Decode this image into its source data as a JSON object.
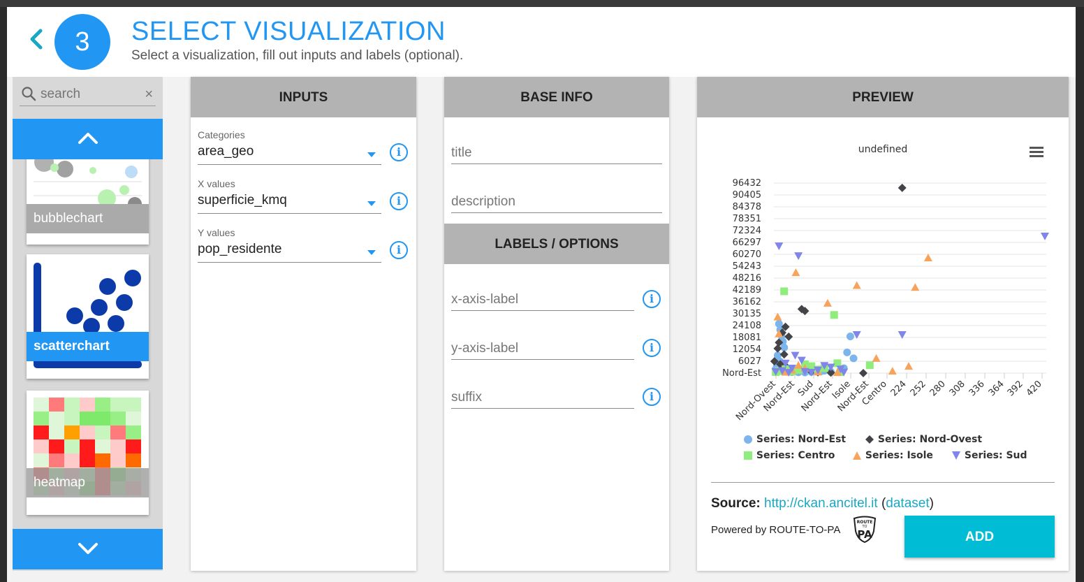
{
  "header": {
    "back_label": "‹",
    "step_number": "3",
    "title": "SELECT VISUALIZATION",
    "subtitle": "Select a visualization, fill out inputs and labels (optional)."
  },
  "sidebar": {
    "search_placeholder": "search",
    "clear_label": "×",
    "cards": [
      {
        "label": "bubblechart",
        "selected": false
      },
      {
        "label": "scatterchart",
        "selected": true
      },
      {
        "label": "heatmap",
        "selected": false
      }
    ]
  },
  "inputs": {
    "heading": "INPUTS",
    "fields": [
      {
        "label": "Categories",
        "value": "area_geo"
      },
      {
        "label": "X values",
        "value": "superficie_kmq"
      },
      {
        "label": "Y values",
        "value": "pop_residente"
      }
    ]
  },
  "base_info": {
    "heading": "BASE INFO",
    "title_placeholder": "title",
    "description_placeholder": "description",
    "labels_heading": "LABELS / OPTIONS",
    "xaxis_placeholder": "x-axis-label",
    "yaxis_placeholder": "y-axis-label",
    "suffix_placeholder": "suffix"
  },
  "preview": {
    "heading": "PREVIEW",
    "source_label": "Source:",
    "source_url": "http://ckan.ancitel.it",
    "dataset_label": "dataset",
    "powered_by": "Powered by ROUTE-TO-PA",
    "logo_text_top": "ROUTE",
    "logo_text_mid": "TO",
    "logo_text_pa": "PA",
    "add_label": "ADD"
  },
  "colors": {
    "accent": "#2196f3",
    "add_button": "#00bcd4",
    "panel_header": "#b3b3b3",
    "series_nord_est": "#7cb5ec",
    "series_nord_ovest": "#434348",
    "series_centro": "#90ed7d",
    "series_isole": "#f7a35c",
    "series_sud": "#8085e9"
  },
  "chart_data": {
    "type": "scatter",
    "title": "undefined",
    "y_tick_labels": [
      "Nord-Est",
      "6027",
      "12054",
      "18081",
      "24108",
      "30135",
      "36162",
      "42189",
      "48216",
      "54243",
      "60270",
      "66297",
      "72324",
      "78351",
      "84378",
      "90405",
      "96432"
    ],
    "x_tick_labels": [
      "Nord-Ovest",
      "Nord-Est",
      "Sud",
      "Nord-Est",
      "Isole",
      "Nord-Est",
      "Centro",
      "224",
      "252",
      "280",
      "308",
      "336",
      "364",
      "392",
      "420"
    ],
    "grid": true,
    "legend_position": "bottom",
    "series": [
      {
        "name": "Series: Nord-Est",
        "marker": "circle",
        "points": [
          [
            10,
            25000
          ],
          [
            12,
            22000
          ],
          [
            14,
            19000
          ],
          [
            16,
            16000
          ],
          [
            18,
            13000
          ],
          [
            8,
            9000
          ],
          [
            11,
            6000
          ],
          [
            15,
            3000
          ],
          [
            20,
            1500
          ],
          [
            25,
            800
          ],
          [
            30,
            500
          ],
          [
            40,
            400
          ],
          [
            50,
            300
          ],
          [
            60,
            600
          ],
          [
            75,
            1000
          ],
          [
            90,
            600
          ],
          [
            110,
            2500
          ],
          [
            120,
            18600
          ],
          [
            115,
            10500
          ],
          [
            125,
            7500
          ],
          [
            100,
            5000
          ],
          [
            80,
            1200
          ],
          [
            5,
            2000
          ],
          [
            7,
            4000
          ]
        ]
      },
      {
        "name": "Series: Nord-Ovest",
        "marker": "diamond",
        "points": [
          [
            200,
            94000
          ],
          [
            45,
            32500
          ],
          [
            50,
            31500
          ],
          [
            20,
            23500
          ],
          [
            15,
            20500
          ],
          [
            25,
            18500
          ],
          [
            10,
            15500
          ],
          [
            8,
            12500
          ],
          [
            18,
            9500
          ],
          [
            3,
            6000
          ],
          [
            12,
            4500
          ],
          [
            22,
            3000
          ],
          [
            30,
            2000
          ],
          [
            40,
            1500
          ],
          [
            60,
            800
          ],
          [
            70,
            400
          ],
          [
            90,
            200
          ],
          [
            140,
            0
          ]
        ]
      },
      {
        "name": "Series: Centro",
        "marker": "square",
        "points": [
          [
            18,
            41500
          ],
          [
            95,
            29500
          ],
          [
            150,
            4000
          ],
          [
            105,
            500
          ],
          [
            100,
            5000
          ],
          [
            80,
            2500
          ],
          [
            60,
            3500
          ],
          [
            40,
            1500
          ],
          [
            30,
            800
          ],
          [
            20,
            2000
          ],
          [
            10,
            1000
          ],
          [
            50,
            4500
          ],
          [
            70,
            1800
          ],
          [
            5,
            500
          ]
        ]
      },
      {
        "name": "Series: Isole",
        "marker": "triangle-up",
        "points": [
          [
            240,
            58500
          ],
          [
            36,
            51000
          ],
          [
            130,
            44500
          ],
          [
            220,
            43500
          ],
          [
            85,
            35500
          ],
          [
            8,
            28500
          ],
          [
            10,
            20000
          ],
          [
            160,
            7500
          ],
          [
            210,
            3500
          ],
          [
            185,
            1000
          ],
          [
            30,
            1500
          ],
          [
            50,
            2500
          ],
          [
            70,
            600
          ],
          [
            100,
            300
          ],
          [
            20,
            500
          ],
          [
            40,
            4000
          ]
        ]
      },
      {
        "name": "Series: Sud",
        "marker": "triangle-down",
        "points": [
          [
            420,
            69500
          ],
          [
            10,
            64500
          ],
          [
            40,
            59500
          ],
          [
            130,
            19500
          ],
          [
            200,
            19500
          ],
          [
            105,
            2000
          ],
          [
            110,
            500
          ],
          [
            90,
            3000
          ],
          [
            70,
            1500
          ],
          [
            50,
            800
          ],
          [
            30,
            2500
          ],
          [
            20,
            5000
          ],
          [
            15,
            1200
          ],
          [
            60,
            400
          ],
          [
            80,
            3800
          ],
          [
            45,
            6500
          ],
          [
            35,
            9000
          ],
          [
            25,
            300
          ],
          [
            5,
            700
          ]
        ]
      }
    ]
  }
}
